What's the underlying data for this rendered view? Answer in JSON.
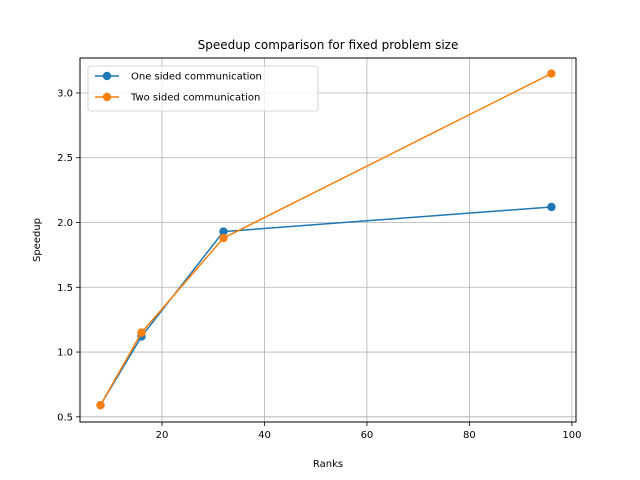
{
  "chart_data": {
    "type": "line",
    "title": "Speedup comparison for fixed problem size",
    "xlabel": "Ranks",
    "ylabel": "Speedup",
    "xlim": [
      4,
      100.8
    ],
    "ylim": [
      0.46,
      3.27
    ],
    "xticks": [
      20,
      40,
      60,
      80,
      100
    ],
    "yticks": [
      0.5,
      1.0,
      1.5,
      2.0,
      2.5,
      3.0
    ],
    "xtick_labels": [
      "20",
      "40",
      "60",
      "80",
      "100"
    ],
    "ytick_labels": [
      "0.5",
      "1.0",
      "1.5",
      "2.0",
      "2.5",
      "3.0"
    ],
    "grid": true,
    "legend": "top-left",
    "x": [
      8,
      16,
      32,
      96
    ],
    "series": [
      {
        "name": "One sided communication",
        "color": "#1f77b4",
        "values": [
          0.59,
          1.12,
          1.93,
          2.12
        ]
      },
      {
        "name": "Two sided communication",
        "color": "#ff7f0e",
        "values": [
          0.59,
          1.15,
          1.88,
          3.15
        ]
      }
    ]
  }
}
